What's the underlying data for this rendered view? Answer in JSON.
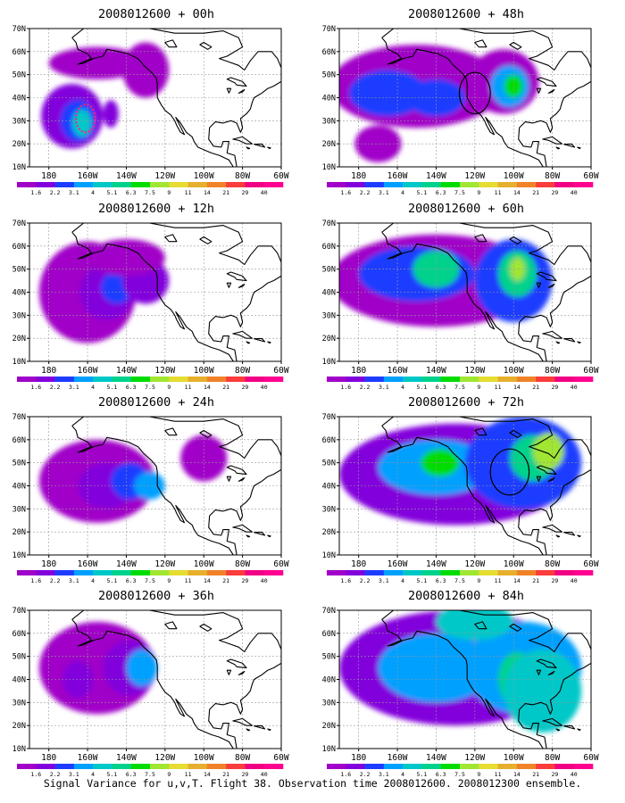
{
  "caption": "Signal Variance for u,v,T. Flight 38. Observation time 2008012600. 2008012300 ensemble.",
  "lat_labels": [
    "70N",
    "60N",
    "50N",
    "40N",
    "30N",
    "20N",
    "10N"
  ],
  "lon_labels": [
    "180",
    "160W",
    "140W",
    "120W",
    "100W",
    "80W",
    "60W"
  ],
  "legend": {
    "values": [
      "1.6",
      "2.2",
      "3.1",
      "4",
      "5.1",
      "6.3",
      "7.5",
      "9",
      "11",
      "14",
      "21",
      "29",
      "40"
    ],
    "colors": [
      "#a000c8",
      "#8200dc",
      "#1e3cff",
      "#00a0ff",
      "#00c8c8",
      "#00d28c",
      "#00dc00",
      "#a0e632",
      "#e6dc32",
      "#e6af2d",
      "#f08228",
      "#fa3c3c",
      "#f00082",
      "#ff0090"
    ]
  },
  "panels": [
    {
      "title": "2008012600 + 00h",
      "blobs": [
        [
          -168,
          32,
          16,
          14,
          1
        ],
        [
          -165,
          30,
          9,
          9,
          2
        ],
        [
          -163,
          29,
          5,
          6,
          4
        ],
        [
          -155,
          55,
          25,
          7,
          0
        ],
        [
          -130,
          52,
          12,
          12,
          0
        ],
        [
          -148,
          33,
          4,
          6,
          1
        ]
      ],
      "circle": [
        -161,
        31,
        5,
        6,
        "#ff2080",
        "dashed"
      ]
    },
    {
      "title": "2008012600 + 48h",
      "blobs": [
        [
          -150,
          45,
          45,
          18,
          0
        ],
        [
          -165,
          42,
          20,
          10,
          2
        ],
        [
          -140,
          40,
          15,
          8,
          2
        ],
        [
          -105,
          47,
          18,
          14,
          0
        ],
        [
          -102,
          45,
          10,
          9,
          3
        ],
        [
          -100,
          45,
          5,
          5,
          6
        ],
        [
          -170,
          20,
          12,
          8,
          0
        ]
      ],
      "circle": [
        -120,
        42,
        8,
        9,
        "#000000",
        "solid"
      ]
    },
    {
      "title": "2008012600 + 12h",
      "blobs": [
        [
          -160,
          40,
          25,
          22,
          0
        ],
        [
          -150,
          40,
          14,
          12,
          1
        ],
        [
          -145,
          42,
          8,
          7,
          2
        ],
        [
          -130,
          45,
          12,
          10,
          1
        ],
        [
          -140,
          55,
          20,
          8,
          0
        ]
      ],
      "circle": null
    },
    {
      "title": "2008012600 + 60h",
      "blobs": [
        [
          -140,
          45,
          55,
          20,
          0
        ],
        [
          -150,
          48,
          30,
          12,
          2
        ],
        [
          -140,
          50,
          12,
          8,
          5
        ],
        [
          -100,
          45,
          20,
          18,
          2
        ],
        [
          -98,
          48,
          10,
          10,
          5
        ],
        [
          -98,
          50,
          4,
          5,
          7
        ]
      ],
      "circle": null
    },
    {
      "title": "2008012600 + 24h",
      "blobs": [
        [
          -155,
          42,
          30,
          18,
          0
        ],
        [
          -150,
          40,
          15,
          10,
          1
        ],
        [
          -138,
          42,
          10,
          8,
          2
        ],
        [
          -128,
          40,
          8,
          6,
          3
        ],
        [
          -100,
          52,
          12,
          10,
          0
        ]
      ],
      "circle": null
    },
    {
      "title": "2008012600 + 72h",
      "blobs": [
        [
          -130,
          45,
          60,
          22,
          1
        ],
        [
          -140,
          48,
          30,
          12,
          3
        ],
        [
          -138,
          50,
          10,
          6,
          6
        ],
        [
          -95,
          50,
          30,
          20,
          2
        ],
        [
          -90,
          52,
          12,
          10,
          5
        ],
        [
          -82,
          55,
          8,
          8,
          7
        ]
      ],
      "circle": [
        -102,
        46,
        10,
        10,
        "#000000",
        "solid"
      ]
    },
    {
      "title": "2008012600 + 36h",
      "blobs": [
        [
          -155,
          45,
          30,
          20,
          0
        ],
        [
          -138,
          45,
          14,
          12,
          1
        ],
        [
          -132,
          45,
          8,
          8,
          3
        ],
        [
          -165,
          40,
          8,
          8,
          1
        ]
      ],
      "circle": null
    },
    {
      "title": "2008012600 + 84h",
      "blobs": [
        [
          -130,
          45,
          60,
          25,
          1
        ],
        [
          -140,
          45,
          30,
          15,
          3
        ],
        [
          -95,
          45,
          30,
          20,
          3
        ],
        [
          -98,
          40,
          10,
          12,
          5
        ],
        [
          -85,
          35,
          20,
          18,
          4
        ],
        [
          -120,
          65,
          20,
          8,
          4
        ]
      ],
      "circle": null
    }
  ]
}
